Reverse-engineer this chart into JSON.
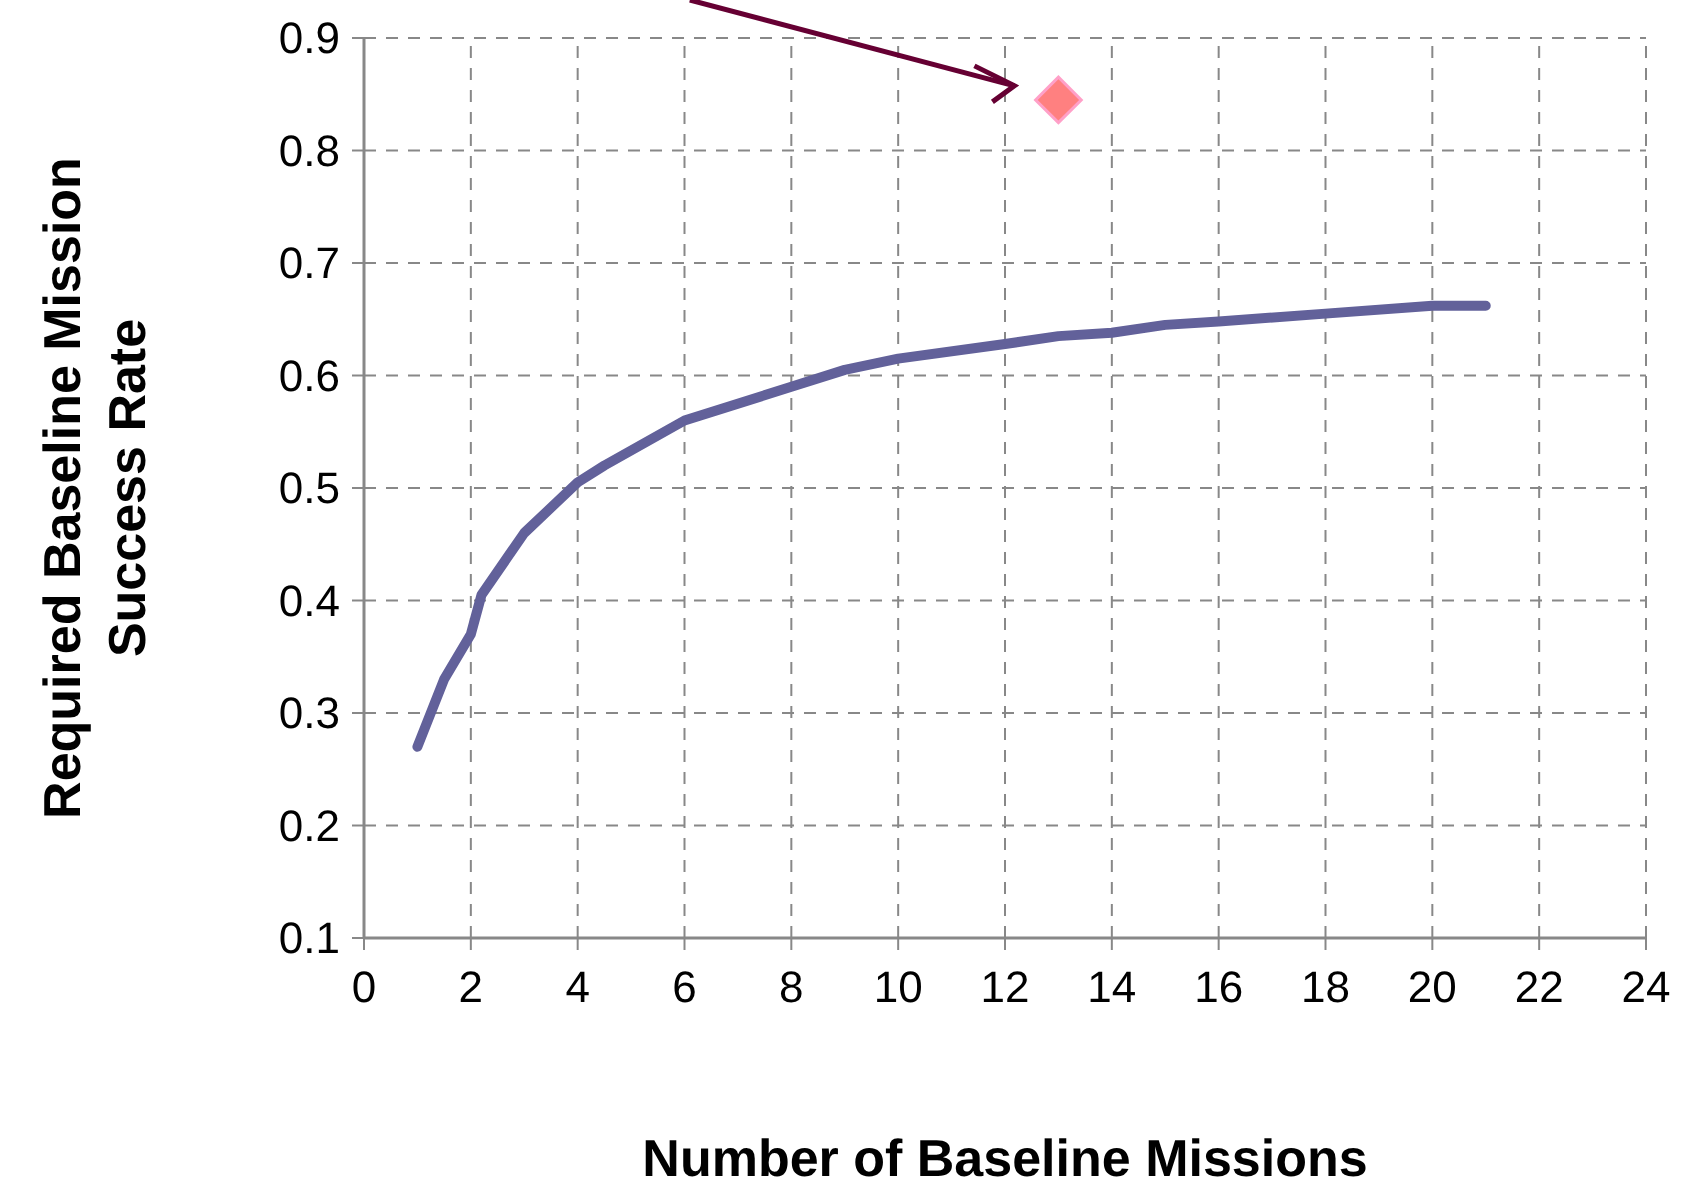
{
  "chart_data": {
    "type": "line",
    "xlabel": "Number of Baseline Missions",
    "ylabel": "Required Baseline Mission Success Rate",
    "xlim": [
      0,
      24
    ],
    "xticks": [
      0,
      2,
      4,
      6,
      8,
      10,
      12,
      14,
      16,
      18,
      20,
      22,
      24
    ],
    "ylim": [
      0.1,
      0.9
    ],
    "yticks": [
      0.1,
      0.2,
      0.3,
      0.4,
      0.5,
      0.6,
      0.7,
      0.8,
      0.9
    ],
    "grid": true,
    "series": [
      {
        "color": "#62619a",
        "marker": "none",
        "line_style": "solid",
        "x": [
          1,
          1.5,
          2,
          2.2,
          3,
          4,
          4.5,
          6,
          8,
          9,
          10,
          12,
          13,
          14,
          15,
          16,
          18,
          20,
          21
        ],
        "values": [
          0.27,
          0.33,
          0.37,
          0.405,
          0.46,
          0.505,
          0.52,
          0.56,
          0.59,
          0.605,
          0.615,
          0.628,
          0.635,
          0.638,
          0.645,
          0.648,
          0.655,
          0.662,
          0.662
        ]
      },
      {
        "type": "scatter",
        "color": "#ff8080",
        "marker": "diamond",
        "x": [
          13
        ],
        "values": [
          0.845
        ]
      }
    ]
  }
}
